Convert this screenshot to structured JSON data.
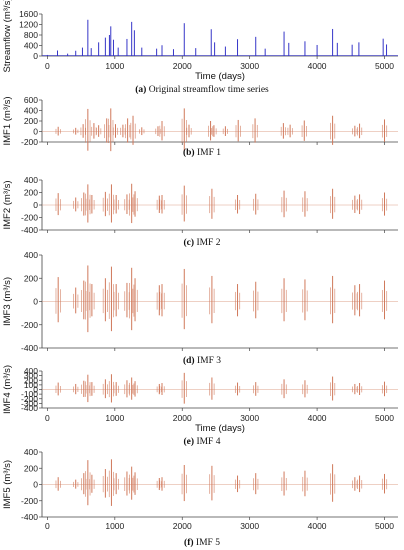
{
  "colors": {
    "streamflow": "#3535c8",
    "imf": "#d0785a",
    "axis": "#444444"
  },
  "chart_data": [
    {
      "type": "line",
      "ylabel": "Streamflow (m³/s)",
      "xlabel": "Time (days)",
      "xlim": [
        -80,
        5200
      ],
      "ylim": [
        0,
        1600
      ],
      "xticks": [
        0,
        1000,
        2000,
        3000,
        4000,
        5000
      ],
      "yticks": [
        0,
        400,
        800,
        1200,
        1600
      ],
      "caption_letter": "(a)",
      "caption": "Original streamflow time series",
      "series": [
        {
          "values": [
            [
              0,
              40
            ],
            [
              150,
              210
            ],
            [
              300,
              90
            ],
            [
              420,
              200
            ],
            [
              520,
              320
            ],
            [
              600,
              1380
            ],
            [
              650,
              300
            ],
            [
              760,
              520
            ],
            [
              860,
              700
            ],
            [
              920,
              800
            ],
            [
              940,
              1130
            ],
            [
              980,
              620
            ],
            [
              1050,
              320
            ],
            [
              1180,
              650
            ],
            [
              1250,
              1300
            ],
            [
              1290,
              980
            ],
            [
              1400,
              320
            ],
            [
              1620,
              280
            ],
            [
              1700,
              410
            ],
            [
              1870,
              260
            ],
            [
              2030,
              1250
            ],
            [
              2200,
              300
            ],
            [
              2430,
              1020
            ],
            [
              2480,
              520
            ],
            [
              2640,
              360
            ],
            [
              2820,
              640
            ],
            [
              3090,
              730
            ],
            [
              3230,
              280
            ],
            [
              3510,
              930
            ],
            [
              3580,
              500
            ],
            [
              3820,
              560
            ],
            [
              4000,
              420
            ],
            [
              4230,
              1030
            ],
            [
              4300,
              500
            ],
            [
              4520,
              430
            ],
            [
              4620,
              520
            ],
            [
              4980,
              660
            ],
            [
              5030,
              440
            ]
          ]
        }
      ]
    },
    {
      "type": "line",
      "ylabel": "IMF1 (m³/s)",
      "xlim": [
        -80,
        5200
      ],
      "ylim": [
        -200,
        600
      ],
      "yticks": [
        -200,
        0,
        200,
        400,
        600
      ],
      "caption_letter": "(b)",
      "caption": "IMF 1",
      "series": [
        {
          "values": [
            [
              160,
              90
            ],
            [
              420,
              70
            ],
            [
              530,
              140
            ],
            [
              600,
              430
            ],
            [
              690,
              160
            ],
            [
              760,
              120
            ],
            [
              880,
              250
            ],
            [
              940,
              440
            ],
            [
              1010,
              140
            ],
            [
              1120,
              130
            ],
            [
              1190,
              250
            ],
            [
              1270,
              300
            ],
            [
              1400,
              80
            ],
            [
              1640,
              100
            ],
            [
              1700,
              200
            ],
            [
              2030,
              440
            ],
            [
              2100,
              130
            ],
            [
              2420,
              200
            ],
            [
              2470,
              120
            ],
            [
              2640,
              100
            ],
            [
              2830,
              220
            ],
            [
              3080,
              250
            ],
            [
              3500,
              160
            ],
            [
              3600,
              130
            ],
            [
              3810,
              210
            ],
            [
              4230,
              300
            ],
            [
              4560,
              110
            ],
            [
              4630,
              150
            ],
            [
              5000,
              230
            ]
          ]
        }
      ]
    },
    {
      "type": "line",
      "ylabel": "IMF2 (m³/s)",
      "xlim": [
        -80,
        5200
      ],
      "ylim": [
        -400,
        400
      ],
      "yticks": [
        -400,
        -200,
        0,
        200,
        400
      ],
      "caption_letter": "(c)",
      "caption": "IMF 2",
      "series": [
        {
          "values": [
            [
              160,
              190
            ],
            [
              420,
              120
            ],
            [
              540,
              200
            ],
            [
              600,
              330
            ],
            [
              660,
              160
            ],
            [
              860,
              210
            ],
            [
              950,
              330
            ],
            [
              1020,
              160
            ],
            [
              1180,
              170
            ],
            [
              1250,
              340
            ],
            [
              1300,
              220
            ],
            [
              1660,
              150
            ],
            [
              1700,
              160
            ],
            [
              2030,
              310
            ],
            [
              2440,
              260
            ],
            [
              2820,
              160
            ],
            [
              3090,
              180
            ],
            [
              3510,
              230
            ],
            [
              3820,
              220
            ],
            [
              4230,
              260
            ],
            [
              4560,
              150
            ],
            [
              4630,
              170
            ],
            [
              5000,
              200
            ]
          ]
        }
      ]
    },
    {
      "type": "line",
      "ylabel": "IMF3 (m³/s)",
      "xlim": [
        -80,
        5200
      ],
      "ylim": [
        -400,
        400
      ],
      "yticks": [
        -400,
        -200,
        0,
        200,
        400
      ],
      "caption_letter": "(d)",
      "caption": "IMF 3",
      "series": [
        {
          "values": [
            [
              160,
              210
            ],
            [
              420,
              120
            ],
            [
              540,
              180
            ],
            [
              600,
              310
            ],
            [
              660,
              150
            ],
            [
              860,
              200
            ],
            [
              950,
              300
            ],
            [
              1020,
              150
            ],
            [
              1180,
              160
            ],
            [
              1250,
              290
            ],
            [
              1300,
              200
            ],
            [
              1660,
              140
            ],
            [
              1700,
              150
            ],
            [
              2030,
              280
            ],
            [
              2440,
              220
            ],
            [
              2820,
              150
            ],
            [
              3090,
              170
            ],
            [
              3510,
              200
            ],
            [
              3820,
              190
            ],
            [
              4230,
              220
            ],
            [
              4560,
              140
            ],
            [
              4630,
              150
            ],
            [
              5000,
              180
            ]
          ]
        }
      ]
    },
    {
      "type": "line",
      "ylabel": "IMF4 (m³/s)",
      "xlabel": "Time (days)",
      "xlim": [
        -80,
        5200
      ],
      "ylim": [
        -400,
        400
      ],
      "xticks": [
        0,
        1000,
        2000,
        3000,
        4000,
        5000
      ],
      "yticks": [
        -400,
        -300,
        -200,
        -100,
        0,
        100,
        200,
        300,
        400
      ],
      "caption_letter": "(e)",
      "caption": "IMF 4",
      "series": [
        {
          "values": [
            [
              160,
              150
            ],
            [
              420,
              120
            ],
            [
              540,
              190
            ],
            [
              600,
              320
            ],
            [
              660,
              160
            ],
            [
              860,
              220
            ],
            [
              950,
              330
            ],
            [
              1020,
              160
            ],
            [
              1180,
              200
            ],
            [
              1250,
              260
            ],
            [
              1300,
              180
            ],
            [
              1660,
              120
            ],
            [
              1700,
              140
            ],
            [
              2030,
              360
            ],
            [
              2440,
              260
            ],
            [
              2820,
              150
            ],
            [
              3090,
              160
            ],
            [
              3510,
              220
            ],
            [
              3820,
              200
            ],
            [
              4230,
              280
            ],
            [
              4560,
              120
            ],
            [
              4630,
              140
            ],
            [
              5000,
              170
            ]
          ]
        }
      ]
    },
    {
      "type": "line",
      "ylabel": "IMF5 (m³/s)",
      "xlim": [
        -80,
        5200
      ],
      "ylim": [
        -400,
        400
      ],
      "xticks": [
        0,
        1000,
        2000,
        3000,
        4000,
        5000
      ],
      "yticks": [
        -400,
        -200,
        0,
        200,
        400
      ],
      "caption_letter": "(f)",
      "caption": "IMF 5",
      "series": [
        {
          "values": [
            [
              160,
              90
            ],
            [
              420,
              60
            ],
            [
              540,
              140
            ],
            [
              600,
              300
            ],
            [
              660,
              120
            ],
            [
              860,
              190
            ],
            [
              950,
              310
            ],
            [
              1020,
              140
            ],
            [
              1180,
              160
            ],
            [
              1250,
              220
            ],
            [
              1300,
              150
            ],
            [
              1660,
              80
            ],
            [
              1700,
              90
            ],
            [
              2030,
              240
            ],
            [
              2440,
              230
            ],
            [
              2820,
              110
            ],
            [
              3090,
              140
            ],
            [
              3510,
              160
            ],
            [
              3820,
              170
            ],
            [
              4230,
              250
            ],
            [
              4560,
              90
            ],
            [
              4630,
              110
            ],
            [
              5000,
              130
            ]
          ]
        }
      ]
    }
  ]
}
